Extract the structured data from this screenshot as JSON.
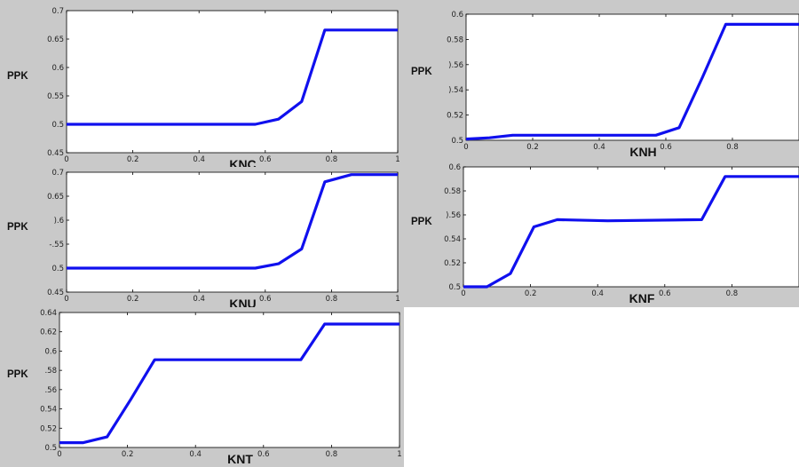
{
  "chart_data": [
    {
      "type": "line",
      "title": "",
      "xlabel": "KNC",
      "ylabel": "PPK",
      "xlim": [
        0,
        1
      ],
      "ylim": [
        0.45,
        0.7
      ],
      "xticks": [
        "0",
        "0.2",
        "0.4",
        "0.6",
        "0.8",
        "1"
      ],
      "yticks": [
        "0.45",
        "0.5",
        "0.55",
        "0.6",
        "0.65",
        "0.7"
      ],
      "series": [
        {
          "x": [
            0,
            0.57,
            0.64,
            0.71,
            0.78,
            1.0
          ],
          "y": [
            0.5,
            0.5,
            0.509,
            0.54,
            0.666,
            0.666
          ]
        }
      ],
      "grid": false,
      "line_color": "#1010ee"
    },
    {
      "type": "line",
      "title": "",
      "xlabel": "KNH",
      "ylabel": "PPK",
      "xlim": [
        0,
        1
      ],
      "ylim": [
        0.5,
        0.6
      ],
      "xticks": [
        "0",
        "0.2",
        "0.4",
        "0.6",
        "0.8"
      ],
      "yticks": [
        "0.5",
        "0.52",
        "0.54",
        "0.56",
        "0.58",
        "0.6"
      ],
      "tick_label_display": [
        "0.5",
        "0.52",
        ").54",
        ").56",
        "0.58",
        "0.6"
      ],
      "series": [
        {
          "x": [
            0,
            0.07,
            0.14,
            0.57,
            0.64,
            0.71,
            0.78,
            1.0
          ],
          "y": [
            0.501,
            0.502,
            0.504,
            0.504,
            0.51,
            0.55,
            0.592,
            0.592
          ]
        }
      ],
      "grid": false,
      "line_color": "#1010ee"
    },
    {
      "type": "line",
      "title": "",
      "xlabel": "KNU",
      "ylabel": "PPK",
      "xlim": [
        0,
        1
      ],
      "ylim": [
        0.45,
        0.7
      ],
      "xticks": [
        "0",
        "0.2",
        "0.4",
        "0.6",
        "0.8",
        "1"
      ],
      "yticks": [
        "0.45",
        "0.5",
        "0.55",
        "0.6",
        "0.65",
        "0.7"
      ],
      "tick_label_display": [
        "0.45",
        "0.5",
        "-.55",
        ").6",
        "0.65",
        "0.7"
      ],
      "series": [
        {
          "x": [
            0,
            0.57,
            0.64,
            0.71,
            0.78,
            0.86,
            1.0
          ],
          "y": [
            0.5,
            0.5,
            0.509,
            0.54,
            0.68,
            0.695,
            0.695
          ]
        }
      ],
      "grid": false,
      "line_color": "#1010ee"
    },
    {
      "type": "line",
      "title": "",
      "xlabel": "KNF",
      "ylabel": "PPK",
      "xlim": [
        0,
        1
      ],
      "ylim": [
        0.5,
        0.6
      ],
      "xticks": [
        "0",
        "0.2",
        "0.4",
        "0.6",
        "0.8"
      ],
      "yticks": [
        "0.5",
        "0.52",
        "0.54",
        "0.56",
        "0.58",
        "0.6"
      ],
      "tick_label_display": [
        "0.5",
        "0.52",
        "0.54",
        ").56",
        "0.58",
        "0.6"
      ],
      "series": [
        {
          "x": [
            0,
            0.07,
            0.14,
            0.21,
            0.28,
            0.43,
            0.71,
            0.78,
            1.0
          ],
          "y": [
            0.5,
            0.5,
            0.511,
            0.55,
            0.556,
            0.555,
            0.556,
            0.592,
            0.592
          ]
        }
      ],
      "grid": false,
      "line_color": "#1010ee"
    },
    {
      "type": "line",
      "title": "",
      "xlabel": "KNT",
      "ylabel": "PPK",
      "xlim": [
        0,
        1
      ],
      "ylim": [
        0.5,
        0.64
      ],
      "xticks": [
        "0",
        "0.2",
        "0.4",
        "0.6",
        "0.8",
        "1"
      ],
      "yticks": [
        "0.5",
        "0.52",
        "0.54",
        "0.56",
        "0.58",
        "0.6",
        "0.62",
        "0.64"
      ],
      "tick_label_display": [
        "0.5",
        "0.52",
        "0.54",
        ".56",
        ".58",
        "0.6",
        "0.62",
        "0.64"
      ],
      "series": [
        {
          "x": [
            0,
            0.07,
            0.14,
            0.21,
            0.28,
            0.71,
            0.78,
            1.0
          ],
          "y": [
            0.505,
            0.505,
            0.511,
            0.55,
            0.591,
            0.591,
            0.628,
            0.628
          ]
        }
      ],
      "grid": false,
      "line_color": "#1010ee"
    }
  ]
}
